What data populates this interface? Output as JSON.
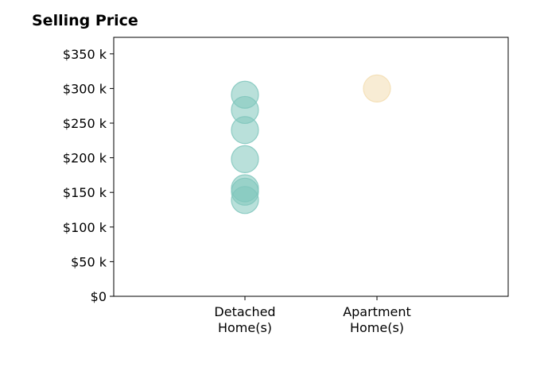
{
  "chart_data": {
    "type": "scatter",
    "title": "Selling Price",
    "xlabel": "",
    "ylabel": "",
    "categories": [
      [
        "Detached",
        "Home(s)"
      ],
      [
        "Apartment",
        "Home(s)"
      ]
    ],
    "y_ticks": [
      "$0",
      "$50 k",
      "$100 k",
      "$150 k",
      "$200 k",
      "$250 k",
      "$300 k",
      "$350 k"
    ],
    "ylim": [
      0,
      375000
    ],
    "grid": false,
    "series": [
      {
        "category_index": 0,
        "color": "#7fc6bc",
        "values": [
          291000,
          269000,
          240000,
          198000,
          156000,
          151000,
          139000
        ]
      },
      {
        "category_index": 1,
        "color": "#f3ddb0",
        "values": [
          300000
        ]
      }
    ]
  }
}
